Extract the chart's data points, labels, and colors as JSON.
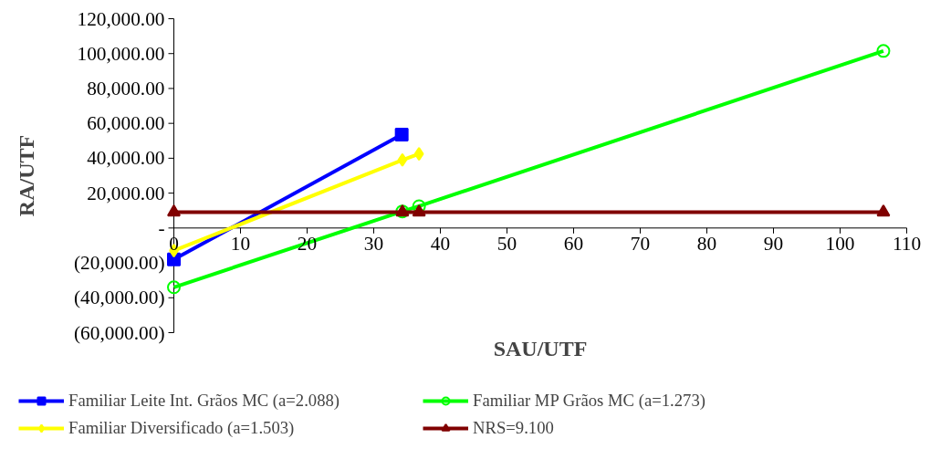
{
  "chart_data": {
    "type": "line",
    "xlabel": "SAU/UTF",
    "ylabel": "RA/UTF",
    "xlim": [
      0,
      110
    ],
    "xticks": [
      0,
      10,
      20,
      30,
      40,
      50,
      60,
      70,
      80,
      90,
      100,
      110
    ],
    "ylim": [
      -60000,
      120000
    ],
    "yticks": [
      {
        "value": -60000,
        "label": "(60,000.00)"
      },
      {
        "value": -40000,
        "label": "(40,000.00)"
      },
      {
        "value": -20000,
        "label": "(20,000.00)"
      },
      {
        "value": 0,
        "label": "-"
      },
      {
        "value": 20000,
        "label": "20,000.00"
      },
      {
        "value": 40000,
        "label": "40,000.00"
      },
      {
        "value": 60000,
        "label": "60,000.00"
      },
      {
        "value": 80000,
        "label": "80,000.00"
      },
      {
        "value": 100000,
        "label": "100,000.00"
      },
      {
        "value": 120000,
        "label": "120,000.00"
      }
    ],
    "grid": false,
    "legend": "bottom",
    "series": [
      {
        "name": "Familiar Leite Int. Grãos MC (a=2.088)",
        "color": "#0000ff",
        "marker": "square",
        "x": [
          0,
          34.2
        ],
        "values": [
          -18000,
          53500
        ]
      },
      {
        "name": "Familiar Diversificado (a=1.503)",
        "color": "#ffff00",
        "marker": "diamond",
        "x": [
          0,
          34.3,
          36.8
        ],
        "values": [
          -13000,
          39000,
          42500
        ]
      },
      {
        "name": "Familiar MP Grãos MC (a=1.273)",
        "color": "#00ff00",
        "marker": "circle",
        "x": [
          0,
          34.3,
          36.8,
          106.5
        ],
        "values": [
          -34000,
          9500,
          12500,
          101500
        ]
      },
      {
        "name": "NRS=9.100",
        "color": "#800000",
        "marker": "triangle",
        "x": [
          0,
          34.3,
          36.8,
          106.5
        ],
        "values": [
          9100,
          9100,
          9100,
          9100
        ]
      }
    ]
  }
}
